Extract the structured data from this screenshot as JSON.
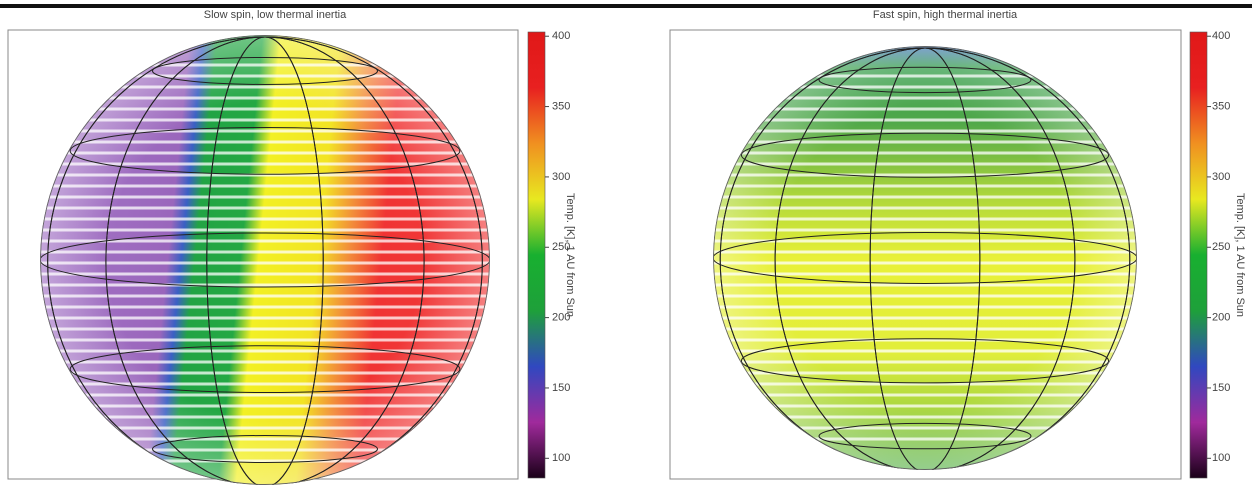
{
  "chart_data": [
    {
      "type": "sphere",
      "title": "Slow spin, low thermal inertia",
      "colorbar": {
        "label": "Temp. [K], 1 AU from Sun",
        "lim": [
          86,
          403
        ],
        "ticks": [
          100,
          150,
          200,
          250,
          300,
          350,
          400
        ],
        "colors": [
          "#1a0018",
          "#a02a9c",
          "#3048c0",
          "#1ea03a",
          "#18b030",
          "#e8e820",
          "#f09020",
          "#e82020",
          "#e01818"
        ]
      }
    },
    {
      "type": "sphere",
      "title": "Fast spin, high thermal inertia",
      "colorbar": {
        "label": "Temp. [K], 1 AU from Sun",
        "lim": [
          86,
          403
        ],
        "ticks": [
          100,
          150,
          200,
          250,
          300,
          350,
          400
        ],
        "colors": [
          "#1a0018",
          "#a02a9c",
          "#3048c0",
          "#1ea03a",
          "#18b030",
          "#e8e820",
          "#f09020",
          "#e82020",
          "#e01818"
        ]
      }
    }
  ]
}
